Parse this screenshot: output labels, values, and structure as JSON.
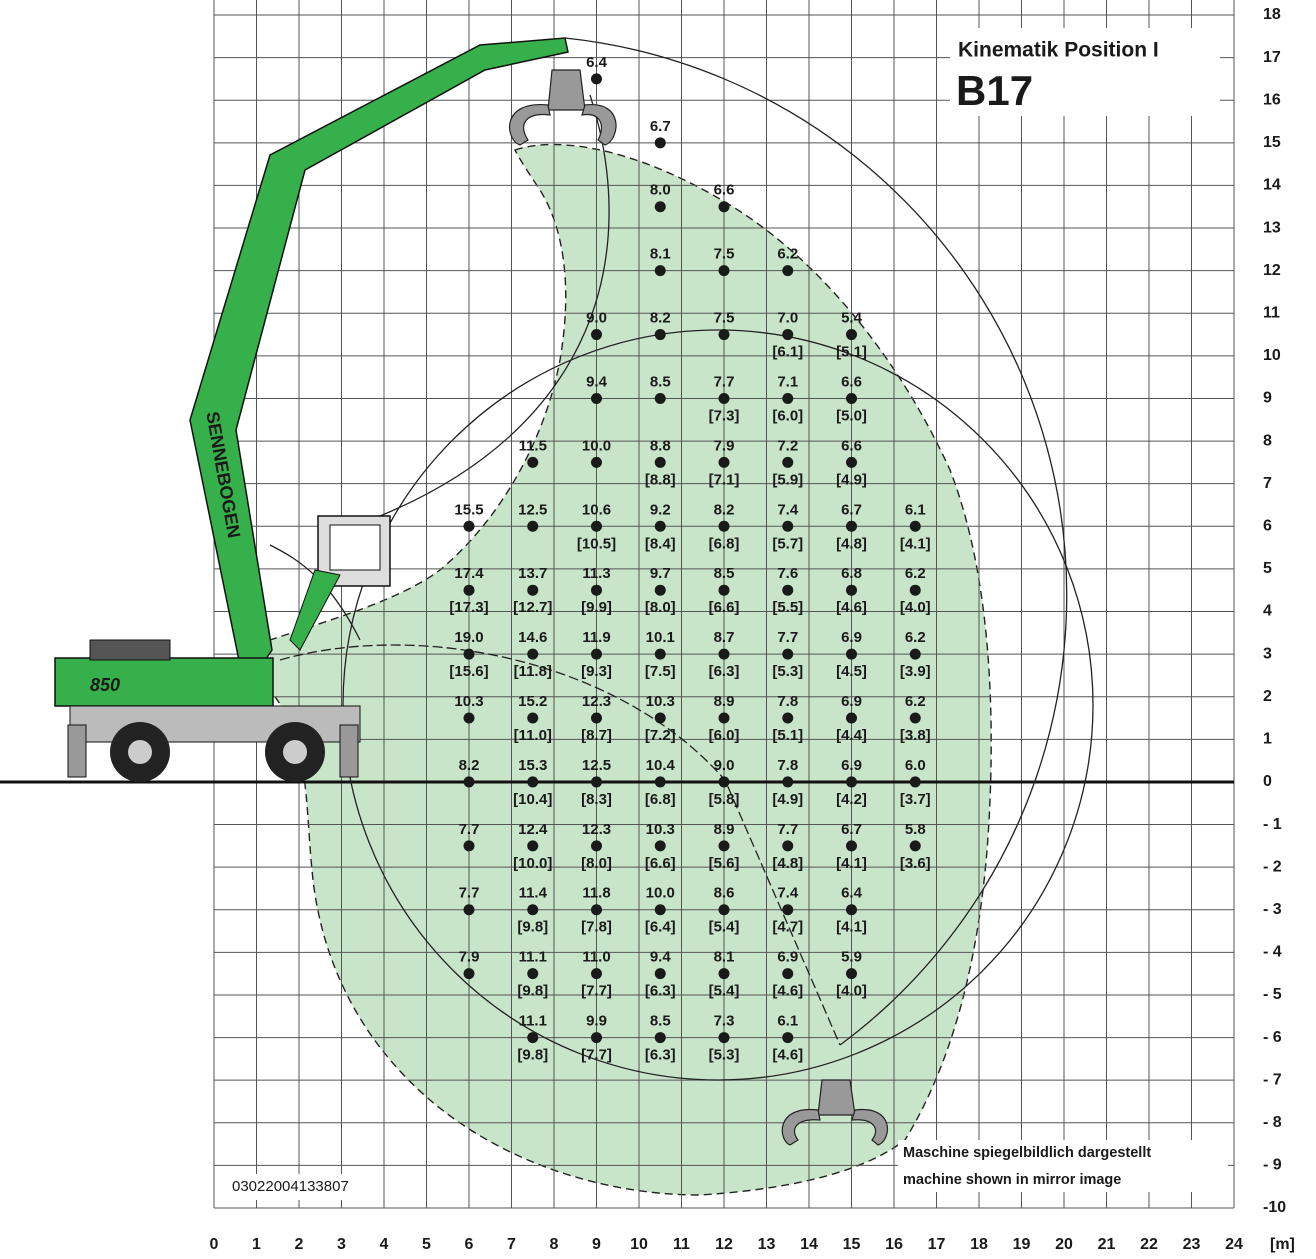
{
  "chart_data": {
    "type": "scatter",
    "title": "Kinematik Position I",
    "model": "B17",
    "doc_number": "03022004133807",
    "note_de": "Maschine spiegelbildlich dargestellt",
    "note_en": "machine shown in mirror image",
    "x_unit": "[m]",
    "brand": "SENNEBOGEN",
    "machine_model": "850",
    "xlim": [
      0,
      24
    ],
    "ylim": [
      -10,
      18
    ],
    "xticks": [
      0,
      1,
      2,
      3,
      4,
      5,
      6,
      7,
      8,
      9,
      10,
      11,
      12,
      13,
      14,
      15,
      16,
      17,
      18,
      19,
      20,
      21,
      22,
      23,
      24
    ],
    "yticks": [
      {
        "value": -10,
        "label": "-10"
      },
      {
        "value": -9,
        "label": "- 9"
      },
      {
        "value": -8,
        "label": "- 8"
      },
      {
        "value": -7,
        "label": "- 7"
      },
      {
        "value": -6,
        "label": "- 6"
      },
      {
        "value": -5,
        "label": "- 5"
      },
      {
        "value": -4,
        "label": "- 4"
      },
      {
        "value": -3,
        "label": "- 3"
      },
      {
        "value": -2,
        "label": "- 2"
      },
      {
        "value": -1,
        "label": "- 1"
      },
      0,
      1,
      2,
      3,
      4,
      5,
      6,
      7,
      8,
      9,
      10,
      11,
      12,
      13,
      14,
      15,
      16,
      17,
      18
    ],
    "grid": true,
    "color": "#1a1a1a",
    "area_color": "#c9e5c9",
    "machine_color": "#36b04a",
    "points": [
      {
        "x": 9,
        "y": 16.5,
        "load": 6.4
      },
      {
        "x": 10.5,
        "y": 15,
        "load": 6.7
      },
      {
        "x": 10.5,
        "y": 13.5,
        "load": 8,
        "load_label": "8.0"
      },
      {
        "x": 12,
        "y": 13.5,
        "load": 6.6
      },
      {
        "x": 10.5,
        "y": 12,
        "load": 8.1
      },
      {
        "x": 12,
        "y": 12,
        "load": 7.5
      },
      {
        "x": 13.5,
        "y": 12,
        "load": 6.2
      },
      {
        "x": 9,
        "y": 10.5,
        "load": 9,
        "load_label": "9.0"
      },
      {
        "x": 10.5,
        "y": 10.5,
        "load": 8.2
      },
      {
        "x": 12,
        "y": 10.5,
        "load": 7.5
      },
      {
        "x": 13.5,
        "y": 10.5,
        "load": 7,
        "load_label": "7.0",
        "reduced": 6.1,
        "reduced_label": "[6.1]"
      },
      {
        "x": 15,
        "y": 10.5,
        "load": 5.4,
        "reduced": 5.1,
        "reduced_label": "[5.1]"
      },
      {
        "x": 9,
        "y": 9,
        "load": 9.4
      },
      {
        "x": 10.5,
        "y": 9,
        "load": 8.5
      },
      {
        "x": 12,
        "y": 9,
        "load": 7.7,
        "reduced": 7.3,
        "reduced_label": "[7.3]"
      },
      {
        "x": 13.5,
        "y": 9,
        "load": 7.1,
        "reduced": 6,
        "reduced_label": "[6.0]"
      },
      {
        "x": 15,
        "y": 9,
        "load": 6.6,
        "reduced": 5,
        "reduced_label": "[5.0]"
      },
      {
        "x": 7.5,
        "y": 7.5,
        "load": 11.5
      },
      {
        "x": 9,
        "y": 7.5,
        "load": 10,
        "load_label": "10.0"
      },
      {
        "x": 10.5,
        "y": 7.5,
        "load": 8.8,
        "reduced": 8.8,
        "reduced_label": "[8.8]"
      },
      {
        "x": 12,
        "y": 7.5,
        "load": 7.9,
        "reduced": 7.1,
        "reduced_label": "[7.1]"
      },
      {
        "x": 13.5,
        "y": 7.5,
        "load": 7.2,
        "reduced": 5.9,
        "reduced_label": "[5.9]"
      },
      {
        "x": 15,
        "y": 7.5,
        "load": 6.6,
        "reduced": 4.9,
        "reduced_label": "[4.9]"
      },
      {
        "x": 6,
        "y": 6,
        "load": 15.5
      },
      {
        "x": 7.5,
        "y": 6,
        "load": 12.5
      },
      {
        "x": 9,
        "y": 6,
        "load": 10.6,
        "reduced": 10.5,
        "reduced_label": "[10.5]"
      },
      {
        "x": 10.5,
        "y": 6,
        "load": 9.2,
        "reduced": 8.4,
        "reduced_label": "[8.4]"
      },
      {
        "x": 12,
        "y": 6,
        "load": 8.2,
        "reduced": 6.8,
        "reduced_label": "[6.8]"
      },
      {
        "x": 13.5,
        "y": 6,
        "load": 7.4,
        "reduced": 5.7,
        "reduced_label": "[5.7]"
      },
      {
        "x": 15,
        "y": 6,
        "load": 6.7,
        "reduced": 4.8,
        "reduced_label": "[4.8]"
      },
      {
        "x": 16.5,
        "y": 6,
        "load": 6.1,
        "reduced": 4.1,
        "reduced_label": "[4.1]"
      },
      {
        "x": 6,
        "y": 4.5,
        "load": 17.4,
        "reduced": 17.3,
        "reduced_label": "[17.3]"
      },
      {
        "x": 7.5,
        "y": 4.5,
        "load": 13.7,
        "reduced": 12.7,
        "reduced_label": "[12.7]"
      },
      {
        "x": 9,
        "y": 4.5,
        "load": 11.3,
        "reduced": 9.9,
        "reduced_label": "[9.9]"
      },
      {
        "x": 10.5,
        "y": 4.5,
        "load": 9.7,
        "reduced": 8,
        "reduced_label": "[8.0]"
      },
      {
        "x": 12,
        "y": 4.5,
        "load": 8.5,
        "reduced": 6.6,
        "reduced_label": "[6.6]"
      },
      {
        "x": 13.5,
        "y": 4.5,
        "load": 7.6,
        "reduced": 5.5,
        "reduced_label": "[5.5]"
      },
      {
        "x": 15,
        "y": 4.5,
        "load": 6.8,
        "reduced": 4.6,
        "reduced_label": "[4.6]"
      },
      {
        "x": 16.5,
        "y": 4.5,
        "load": 6.2,
        "reduced": 4,
        "reduced_label": "[4.0]"
      },
      {
        "x": 6,
        "y": 3,
        "load": 19,
        "load_label": "19.0",
        "reduced": 15.6,
        "reduced_label": "[15.6]"
      },
      {
        "x": 7.5,
        "y": 3,
        "load": 14.6,
        "reduced": 11.8,
        "reduced_label": "[11.8]"
      },
      {
        "x": 9,
        "y": 3,
        "load": 11.9,
        "reduced": 9.3,
        "reduced_label": "[9.3]"
      },
      {
        "x": 10.5,
        "y": 3,
        "load": 10.1,
        "reduced": 7.5,
        "reduced_label": "[7.5]"
      },
      {
        "x": 12,
        "y": 3,
        "load": 8.7,
        "reduced": 6.3,
        "reduced_label": "[6.3]"
      },
      {
        "x": 13.5,
        "y": 3,
        "load": 7.7,
        "reduced": 5.3,
        "reduced_label": "[5.3]"
      },
      {
        "x": 15,
        "y": 3,
        "load": 6.9,
        "reduced": 4.5,
        "reduced_label": "[4.5]"
      },
      {
        "x": 16.5,
        "y": 3,
        "load": 6.2,
        "reduced": 3.9,
        "reduced_label": "[3.9]"
      },
      {
        "x": 6,
        "y": 1.5,
        "load": 10.3
      },
      {
        "x": 7.5,
        "y": 1.5,
        "load": 15.2,
        "reduced": 11,
        "reduced_label": "[11.0]"
      },
      {
        "x": 9,
        "y": 1.5,
        "load": 12.3,
        "reduced": 8.7,
        "reduced_label": "[8.7]"
      },
      {
        "x": 10.5,
        "y": 1.5,
        "load": 10.3,
        "reduced": 7.2,
        "reduced_label": "[7.2]"
      },
      {
        "x": 12,
        "y": 1.5,
        "load": 8.9,
        "reduced": 6,
        "reduced_label": "[6.0]"
      },
      {
        "x": 13.5,
        "y": 1.5,
        "load": 7.8,
        "reduced": 5.1,
        "reduced_label": "[5.1]"
      },
      {
        "x": 15,
        "y": 1.5,
        "load": 6.9,
        "reduced": 4.4,
        "reduced_label": "[4.4]"
      },
      {
        "x": 16.5,
        "y": 1.5,
        "load": 6.2,
        "reduced": 3.8,
        "reduced_label": "[3.8]"
      },
      {
        "x": 6,
        "y": 0,
        "load": 8.2
      },
      {
        "x": 7.5,
        "y": 0,
        "load": 15.3,
        "reduced": 10.4,
        "reduced_label": "[10.4]"
      },
      {
        "x": 9,
        "y": 0,
        "load": 12.5,
        "reduced": 8.3,
        "reduced_label": "[8.3]"
      },
      {
        "x": 10.5,
        "y": 0,
        "load": 10.4,
        "reduced": 6.8,
        "reduced_label": "[6.8]"
      },
      {
        "x": 12,
        "y": 0,
        "load": 9,
        "load_label": "9.0",
        "reduced": 5.8,
        "reduced_label": "[5.8]"
      },
      {
        "x": 13.5,
        "y": 0,
        "load": 7.8,
        "reduced": 4.9,
        "reduced_label": "[4.9]"
      },
      {
        "x": 15,
        "y": 0,
        "load": 6.9,
        "reduced": 4.2,
        "reduced_label": "[4.2]"
      },
      {
        "x": 16.5,
        "y": 0,
        "load": 6,
        "load_label": "6.0",
        "reduced": 3.7,
        "reduced_label": "[3.7]"
      },
      {
        "x": 6,
        "y": -1.5,
        "load": 7.7
      },
      {
        "x": 7.5,
        "y": -1.5,
        "load": 12.4,
        "reduced": 10,
        "reduced_label": "[10.0]"
      },
      {
        "x": 9,
        "y": -1.5,
        "load": 12.3,
        "reduced": 8,
        "reduced_label": "[8.0]"
      },
      {
        "x": 10.5,
        "y": -1.5,
        "load": 10.3,
        "reduced": 6.6,
        "reduced_label": "[6.6]"
      },
      {
        "x": 12,
        "y": -1.5,
        "load": 8.9,
        "reduced": 5.6,
        "reduced_label": "[5.6]"
      },
      {
        "x": 13.5,
        "y": -1.5,
        "load": 7.7,
        "reduced": 4.8,
        "reduced_label": "[4.8]"
      },
      {
        "x": 15,
        "y": -1.5,
        "load": 6.7,
        "reduced": 4.1,
        "reduced_label": "[4.1]"
      },
      {
        "x": 16.5,
        "y": -1.5,
        "load": 5.8,
        "reduced": 3.6,
        "reduced_label": "[3.6]"
      },
      {
        "x": 6,
        "y": -3,
        "load": 7.7
      },
      {
        "x": 7.5,
        "y": -3,
        "load": 11.4,
        "reduced": 9.8,
        "reduced_label": "[9.8]"
      },
      {
        "x": 9,
        "y": -3,
        "load": 11.8,
        "reduced": 7.8,
        "reduced_label": "[7.8]"
      },
      {
        "x": 10.5,
        "y": -3,
        "load": 10,
        "load_label": "10.0",
        "reduced": 6.4,
        "reduced_label": "[6.4]"
      },
      {
        "x": 12,
        "y": -3,
        "load": 8.6,
        "reduced": 5.4,
        "reduced_label": "[5.4]"
      },
      {
        "x": 13.5,
        "y": -3,
        "load": 7.4,
        "reduced": 4.7,
        "reduced_label": "[4.7]"
      },
      {
        "x": 15,
        "y": -3,
        "load": 6.4,
        "reduced": 4.1,
        "reduced_label": "[4.1]"
      },
      {
        "x": 6,
        "y": -4.5,
        "load": 7.9
      },
      {
        "x": 7.5,
        "y": -4.5,
        "load": 11.1,
        "reduced": 9.8,
        "reduced_label": "[9.8]"
      },
      {
        "x": 9,
        "y": -4.5,
        "load": 11,
        "load_label": "11.0",
        "reduced": 7.7,
        "reduced_label": "[7.7]"
      },
      {
        "x": 10.5,
        "y": -4.5,
        "load": 9.4,
        "reduced": 6.3,
        "reduced_label": "[6.3]"
      },
      {
        "x": 12,
        "y": -4.5,
        "load": 8.1,
        "reduced": 5.4,
        "reduced_label": "[5.4]"
      },
      {
        "x": 13.5,
        "y": -4.5,
        "load": 6.9,
        "reduced": 4.6,
        "reduced_label": "[4.6]"
      },
      {
        "x": 15,
        "y": -4.5,
        "load": 5.9,
        "reduced": 4,
        "reduced_label": "[4.0]"
      },
      {
        "x": 7.5,
        "y": -6,
        "load": 11.1,
        "reduced": 9.8,
        "reduced_label": "[9.8]"
      },
      {
        "x": 9,
        "y": -6,
        "load": 9.9,
        "reduced": 7.7,
        "reduced_label": "[7.7]"
      },
      {
        "x": 10.5,
        "y": -6,
        "load": 8.5,
        "reduced": 6.3,
        "reduced_label": "[6.3]"
      },
      {
        "x": 12,
        "y": -6,
        "load": 7.3,
        "reduced": 5.3,
        "reduced_label": "[5.3]"
      },
      {
        "x": 13.5,
        "y": -6,
        "load": 6.1,
        "reduced": 4.6,
        "reduced_label": "[4.6]"
      }
    ]
  }
}
